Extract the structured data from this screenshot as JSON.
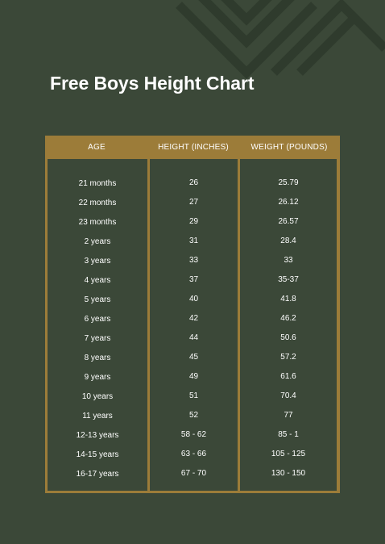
{
  "title": "Free Boys Height Chart",
  "colors": {
    "background": "#3b4838",
    "accent": "#9c7c39",
    "decoration": "#2f3b2d",
    "text": "#ffffff"
  },
  "table": {
    "headers": {
      "age": "AGE",
      "height": "HEIGHT (INCHES)",
      "weight": "WEIGHT (POUNDS)"
    },
    "rows": [
      {
        "age": "21 months",
        "height": "26",
        "weight": "25.79"
      },
      {
        "age": "22 months",
        "height": "27",
        "weight": "26.12"
      },
      {
        "age": "23 months",
        "height": "29",
        "weight": "26.57"
      },
      {
        "age": "2 years",
        "height": "31",
        "weight": "28.4"
      },
      {
        "age": "3 years",
        "height": "33",
        "weight": "33"
      },
      {
        "age": "4 years",
        "height": "37",
        "weight": "35-37"
      },
      {
        "age": "5 years",
        "height": "40",
        "weight": "41.8"
      },
      {
        "age": "6 years",
        "height": "42",
        "weight": "46.2"
      },
      {
        "age": "7 years",
        "height": "44",
        "weight": "50.6"
      },
      {
        "age": "8 years",
        "height": "45",
        "weight": "57.2"
      },
      {
        "age": "9 years",
        "height": "49",
        "weight": "61.6"
      },
      {
        "age": "10 years",
        "height": "51",
        "weight": "70.4"
      },
      {
        "age": "11 years",
        "height": "52",
        "weight": "77"
      },
      {
        "age": "12-13 years",
        "height": "58 - 62",
        "weight": "85 - 1"
      },
      {
        "age": "14-15 years",
        "height": "63 - 66",
        "weight": "105 - 125"
      },
      {
        "age": "16-17 years",
        "height": "67 - 70",
        "weight": "130 - 150"
      }
    ]
  }
}
